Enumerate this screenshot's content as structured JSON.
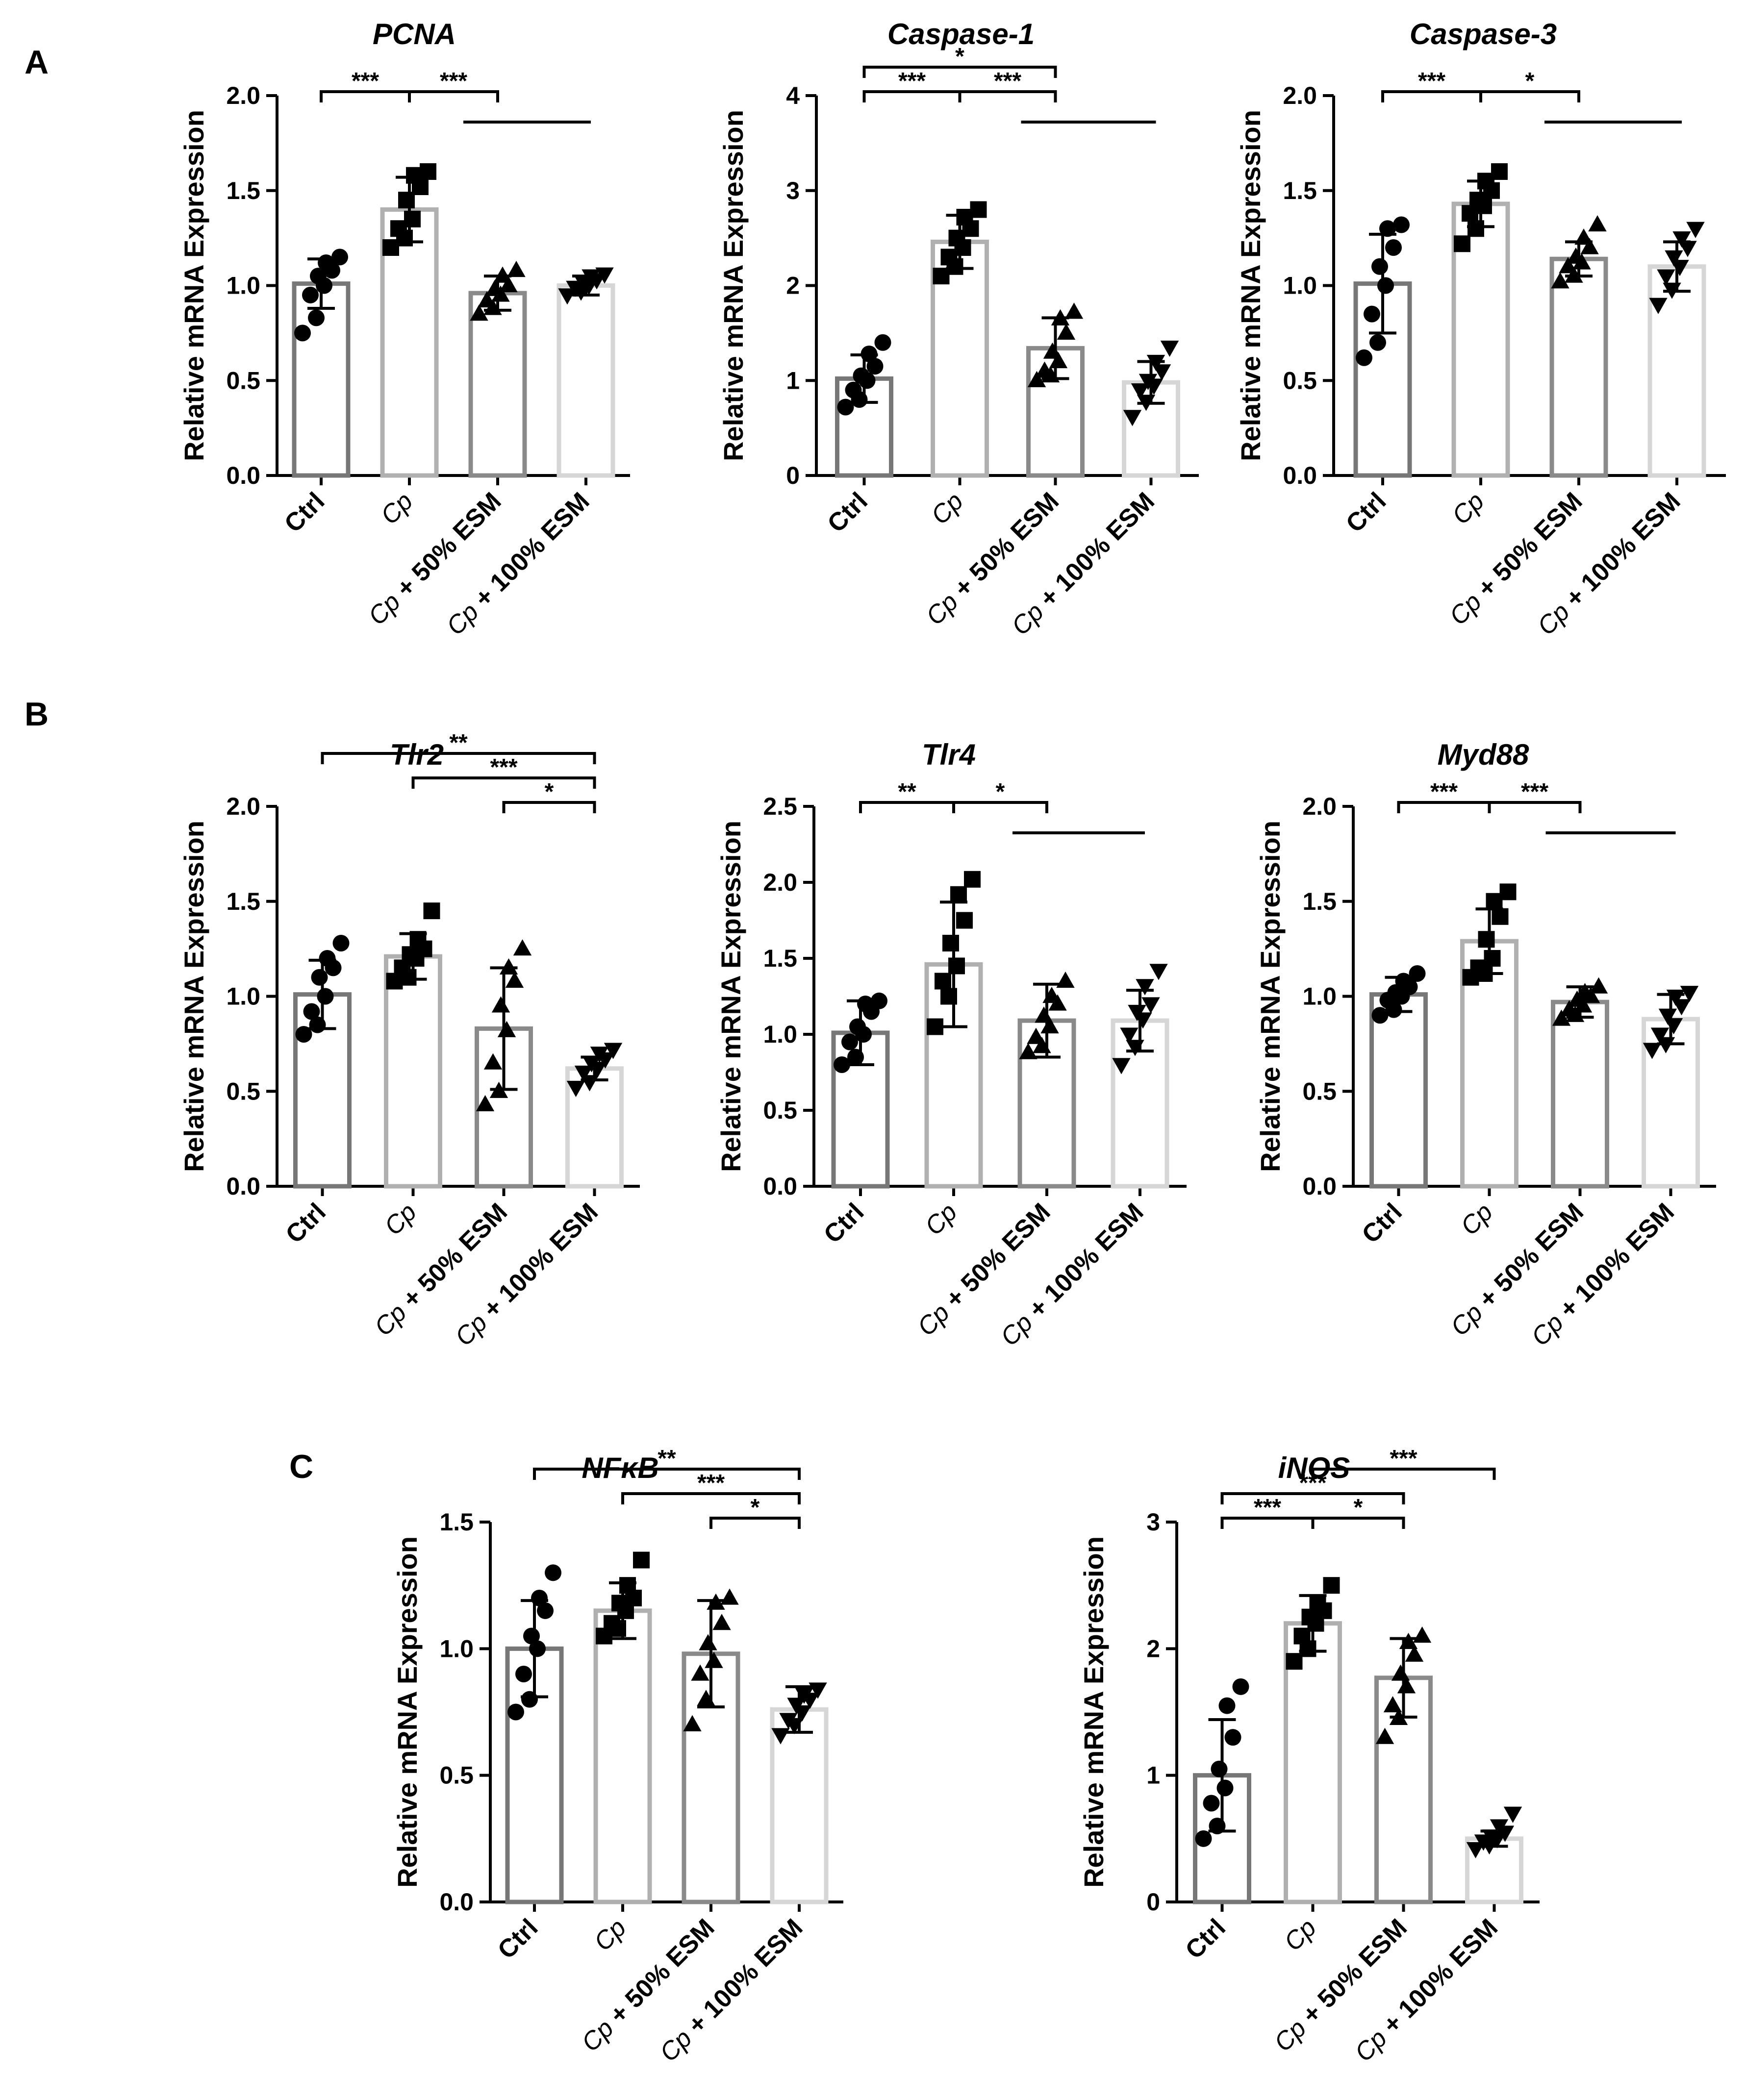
{
  "panels": [
    "A",
    "B",
    "C"
  ],
  "groups": [
    {
      "label": "Ctrl",
      "italic": "",
      "rest": "Ctrl",
      "color": "#777777",
      "marker": "circle"
    },
    {
      "label": "Cp",
      "italic": "Cp",
      "rest": "",
      "color": "#b0b0b0",
      "marker": "square"
    },
    {
      "label": "Cp + 50% ESM",
      "italic": "Cp",
      "rest": " + 50% ESM",
      "color": "#8a8a8a",
      "marker": "triangle-up"
    },
    {
      "label": "Cp + 100% ESM",
      "italic": "Cp",
      "rest": " + 100% ESM",
      "color": "#d6d6d6",
      "marker": "triangle-down"
    }
  ],
  "chart_data": [
    {
      "panel": "A",
      "type": "bar",
      "title": "PCNA",
      "ylabel": "Relative mRNA Expression",
      "ylim": [
        0,
        2.0
      ],
      "yticks": [
        "0.0",
        "0.5",
        "1.0",
        "1.5",
        "2.0"
      ],
      "categories": [
        "Ctrl",
        "Cp",
        "Cp + 50% ESM",
        "Cp + 100% ESM"
      ],
      "series": [
        {
          "name": "mean",
          "values": [
            1.01,
            1.4,
            0.96,
            1.0
          ]
        }
      ],
      "error_sd": [
        0.13,
        0.17,
        0.09,
        0.05
      ],
      "points": [
        [
          0.75,
          0.83,
          0.95,
          1.0,
          1.05,
          1.08,
          1.12,
          1.15
        ],
        [
          1.2,
          1.25,
          1.3,
          1.35,
          1.45,
          1.52,
          1.58,
          1.6
        ],
        [
          0.85,
          0.88,
          0.92,
          0.95,
          0.98,
          1.0,
          1.05,
          1.08
        ],
        [
          0.95,
          0.97,
          0.99,
          1.0,
          1.02,
          1.03,
          1.05,
          1.06
        ]
      ],
      "significance": [
        {
          "from": 0,
          "to": 1,
          "label": "***",
          "level": 0,
          "style": "bracket"
        },
        {
          "from": 1,
          "to": 3,
          "label": "***",
          "level": 0,
          "style": "split"
        }
      ]
    },
    {
      "panel": "A",
      "type": "bar",
      "title": "Caspase-1",
      "ylabel": "Relative mRNA Expression",
      "ylim": [
        0,
        4
      ],
      "yticks": [
        "0",
        "1",
        "2",
        "3",
        "4"
      ],
      "categories": [
        "Ctrl",
        "Cp",
        "Cp + 50% ESM",
        "Cp + 100% ESM"
      ],
      "series": [
        {
          "name": "mean",
          "values": [
            1.02,
            2.46,
            1.34,
            0.98
          ]
        }
      ],
      "error_sd": [
        0.25,
        0.28,
        0.32,
        0.22
      ],
      "points": [
        [
          0.72,
          0.8,
          0.9,
          1.0,
          1.05,
          1.15,
          1.28,
          1.4
        ],
        [
          2.1,
          2.2,
          2.3,
          2.4,
          2.5,
          2.6,
          2.72,
          2.8
        ],
        [
          1.0,
          1.05,
          1.1,
          1.2,
          1.3,
          1.5,
          1.65,
          1.72
        ],
        [
          0.62,
          0.78,
          0.9,
          0.95,
          1.0,
          1.1,
          1.2,
          1.35
        ]
      ],
      "significance": [
        {
          "from": 0,
          "to": 1,
          "label": "***",
          "level": 0,
          "style": "bracket"
        },
        {
          "from": 1,
          "to": 3,
          "label": "***",
          "level": 0,
          "style": "split"
        },
        {
          "from": 0,
          "to": 2,
          "label": "*",
          "level": 1,
          "style": "bracket"
        }
      ]
    },
    {
      "panel": "A",
      "type": "bar",
      "title": "Caspase-3",
      "ylabel": "Relative mRNA Expression",
      "ylim": [
        0,
        2.0
      ],
      "yticks": [
        "0.0",
        "0.5",
        "1.0",
        "1.5",
        "2.0"
      ],
      "categories": [
        "Ctrl",
        "Cp",
        "Cp + 50% ESM",
        "Cp + 100% ESM"
      ],
      "series": [
        {
          "name": "mean",
          "values": [
            1.01,
            1.43,
            1.14,
            1.1
          ]
        }
      ],
      "error_sd": [
        0.26,
        0.12,
        0.09,
        0.13
      ],
      "points": [
        [
          0.62,
          0.7,
          0.85,
          1.0,
          1.1,
          1.2,
          1.3,
          1.32
        ],
        [
          1.22,
          1.3,
          1.38,
          1.42,
          1.45,
          1.5,
          1.55,
          1.6
        ],
        [
          1.02,
          1.05,
          1.1,
          1.12,
          1.15,
          1.2,
          1.25,
          1.32
        ],
        [
          0.9,
          0.98,
          1.05,
          1.1,
          1.15,
          1.2,
          1.25,
          1.3
        ]
      ],
      "significance": [
        {
          "from": 0,
          "to": 1,
          "label": "***",
          "level": 0,
          "style": "bracket"
        },
        {
          "from": 1,
          "to": 3,
          "label": "*",
          "level": 0,
          "style": "split"
        }
      ]
    },
    {
      "panel": "B",
      "type": "bar",
      "title": "Tlr2",
      "ylabel": "Relative mRNA Expression",
      "ylim": [
        0,
        2.0
      ],
      "yticks": [
        "0.0",
        "0.5",
        "1.0",
        "1.5",
        "2.0"
      ],
      "categories": [
        "Ctrl",
        "Cp",
        "Cp + 50% ESM",
        "Cp + 100% ESM"
      ],
      "series": [
        {
          "name": "mean",
          "values": [
            1.01,
            1.21,
            0.83,
            0.62
          ]
        }
      ],
      "error_sd": [
        0.18,
        0.12,
        0.32,
        0.06
      ],
      "points": [
        [
          0.8,
          0.85,
          0.92,
          1.0,
          1.1,
          1.15,
          1.2,
          1.28
        ],
        [
          1.08,
          1.1,
          1.15,
          1.2,
          1.22,
          1.25,
          1.3,
          1.45
        ],
        [
          0.43,
          0.5,
          0.65,
          0.82,
          0.95,
          1.08,
          1.15,
          1.25
        ],
        [
          0.52,
          0.55,
          0.6,
          0.62,
          0.65,
          0.67,
          0.7,
          0.72
        ]
      ],
      "significance": [
        {
          "from": 2,
          "to": 3,
          "label": "*",
          "level": 0,
          "style": "bracket"
        },
        {
          "from": 1,
          "to": 3,
          "label": "***",
          "level": 1,
          "style": "bracket"
        },
        {
          "from": 0,
          "to": 3,
          "label": "**",
          "level": 2,
          "style": "bracket"
        }
      ]
    },
    {
      "panel": "B",
      "type": "bar",
      "title": "Tlr4",
      "ylabel": "Relative mRNA Expression",
      "ylim": [
        0,
        2.5
      ],
      "yticks": [
        "0.0",
        "0.5",
        "1.0",
        "1.5",
        "2.0",
        "2.5"
      ],
      "categories": [
        "Ctrl",
        "Cp",
        "Cp + 50% ESM",
        "Cp + 100% ESM"
      ],
      "series": [
        {
          "name": "mean",
          "values": [
            1.01,
            1.46,
            1.09,
            1.09
          ]
        }
      ],
      "error_sd": [
        0.21,
        0.41,
        0.24,
        0.2
      ],
      "points": [
        [
          0.8,
          0.85,
          0.95,
          1.0,
          1.05,
          1.15,
          1.2,
          1.22
        ],
        [
          1.05,
          1.25,
          1.35,
          1.45,
          1.6,
          1.75,
          1.92,
          2.02
        ],
        [
          0.88,
          0.92,
          0.98,
          1.05,
          1.12,
          1.2,
          1.25,
          1.35
        ],
        [
          0.8,
          0.92,
          1.0,
          1.1,
          1.15,
          1.2,
          1.32,
          1.42
        ]
      ],
      "significance": [
        {
          "from": 0,
          "to": 1,
          "label": "**",
          "level": 0,
          "style": "bracket"
        },
        {
          "from": 1,
          "to": 3,
          "label": "*",
          "level": 0,
          "style": "split"
        }
      ]
    },
    {
      "panel": "B",
      "type": "bar",
      "title": "Myd88",
      "ylabel": "Relative mRNA Expression",
      "ylim": [
        0,
        2.0
      ],
      "yticks": [
        "0.0",
        "0.5",
        "1.0",
        "1.5",
        "2.0"
      ],
      "categories": [
        "Ctrl",
        "Cp",
        "Cp + 50% ESM",
        "Cp + 100% ESM"
      ],
      "series": [
        {
          "name": "mean",
          "values": [
            1.01,
            1.29,
            0.97,
            0.88
          ]
        }
      ],
      "error_sd": [
        0.09,
        0.17,
        0.08,
        0.13
      ],
      "points": [
        [
          0.9,
          0.93,
          0.98,
          1.0,
          1.02,
          1.05,
          1.08,
          1.12
        ],
        [
          1.1,
          1.12,
          1.15,
          1.2,
          1.3,
          1.42,
          1.5,
          1.55
        ],
        [
          0.88,
          0.9,
          0.93,
          0.95,
          0.98,
          1.0,
          1.02,
          1.05
        ],
        [
          0.72,
          0.75,
          0.8,
          0.85,
          0.9,
          0.95,
          1.0,
          1.02
        ]
      ],
      "significance": [
        {
          "from": 0,
          "to": 1,
          "label": "***",
          "level": 0,
          "style": "bracket"
        },
        {
          "from": 1,
          "to": 3,
          "label": "***",
          "level": 0,
          "style": "split"
        }
      ]
    },
    {
      "panel": "C",
      "type": "bar",
      "title": "NFκB",
      "ylabel": "Relative mRNA Expression",
      "ylim": [
        0,
        1.5
      ],
      "yticks": [
        "0.0",
        "0.5",
        "1.0",
        "1.5"
      ],
      "categories": [
        "Ctrl",
        "Cp",
        "Cp + 50% ESM",
        "Cp + 100% ESM"
      ],
      "series": [
        {
          "name": "mean",
          "values": [
            1.0,
            1.15,
            0.98,
            0.76
          ]
        }
      ],
      "error_sd": [
        0.19,
        0.11,
        0.21,
        0.09
      ],
      "points": [
        [
          0.75,
          0.8,
          0.9,
          1.0,
          1.05,
          1.15,
          1.2,
          1.3
        ],
        [
          1.05,
          1.08,
          1.1,
          1.15,
          1.18,
          1.2,
          1.25,
          1.35
        ],
        [
          0.7,
          0.8,
          0.9,
          0.95,
          1.02,
          1.1,
          1.18,
          1.2
        ],
        [
          0.66,
          0.7,
          0.72,
          0.75,
          0.78,
          0.8,
          0.82,
          0.84
        ]
      ],
      "significance": [
        {
          "from": 2,
          "to": 3,
          "label": "*",
          "level": 0,
          "style": "bracket"
        },
        {
          "from": 1,
          "to": 3,
          "label": "***",
          "level": 1,
          "style": "bracket"
        },
        {
          "from": 0,
          "to": 3,
          "label": "**",
          "level": 2,
          "style": "bracket"
        }
      ]
    },
    {
      "panel": "C",
      "type": "bar",
      "title": "iNOS",
      "ylabel": "Relative mRNA Expression",
      "ylim": [
        0,
        3
      ],
      "yticks": [
        "0",
        "1",
        "2",
        "3"
      ],
      "categories": [
        "Ctrl",
        "Cp",
        "Cp + 50% ESM",
        "Cp + 100% ESM"
      ],
      "series": [
        {
          "name": "mean",
          "values": [
            1.0,
            2.2,
            1.77,
            0.5
          ]
        }
      ],
      "error_sd": [
        0.44,
        0.22,
        0.31,
        0.06
      ],
      "points": [
        [
          0.5,
          0.6,
          0.78,
          0.9,
          1.05,
          1.3,
          1.55,
          1.7
        ],
        [
          1.9,
          2.0,
          2.1,
          2.2,
          2.25,
          2.3,
          2.35,
          2.5
        ],
        [
          1.3,
          1.45,
          1.55,
          1.7,
          1.8,
          1.95,
          2.05,
          2.1
        ],
        [
          0.42,
          0.45,
          0.48,
          0.5,
          0.52,
          0.55,
          0.6,
          0.7
        ]
      ],
      "significance": [
        {
          "from": 0,
          "to": 1,
          "label": "***",
          "level": 0,
          "style": "bracket"
        },
        {
          "from": 1,
          "to": 2,
          "label": "*",
          "level": 0,
          "style": "bracket"
        },
        {
          "from": 0,
          "to": 2,
          "label": "***",
          "level": 1,
          "style": "bracket"
        },
        {
          "from": 1,
          "to": 3,
          "label": "***",
          "level": 2,
          "style": "bracket"
        }
      ]
    }
  ]
}
